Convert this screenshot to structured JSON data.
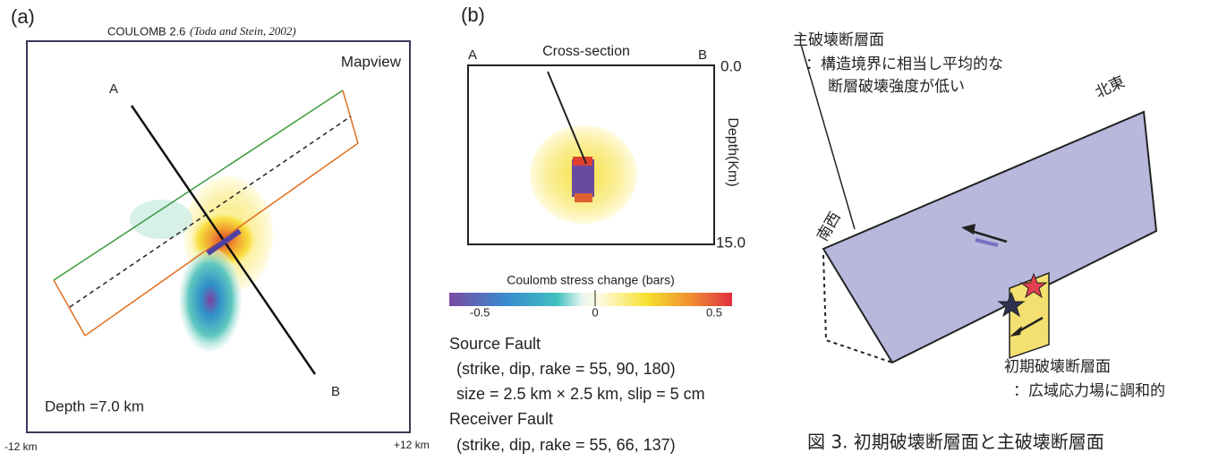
{
  "panel_a": {
    "label": "(a)",
    "program": "COULOMB 2.6",
    "citation": "(Toda and Stein, 2002)",
    "view": "Mapview",
    "point_a": "A",
    "point_b": "B",
    "depth": "Depth =7.0 km",
    "x_left": "-12 km",
    "x_right": "+12 km"
  },
  "panel_b": {
    "label": "(b)",
    "title": "Cross-section",
    "point_a": "A",
    "point_b": "B",
    "depth_top": "0.0",
    "depth_bottom": "15.0",
    "depth_axis": "Depth(Km)"
  },
  "colorbar": {
    "title": "Coulomb stress change (bars)",
    "ticks": [
      "-0.5",
      "0",
      "0.5"
    ]
  },
  "fault_text": [
    "Source Fault",
    "(strike, dip, rake = 55, 90, 180)",
    "size = 2.5 km × 2.5 km, slip = 5 cm",
    "Receiver Fault",
    "(strike, dip, rake = 55, 66, 137)"
  ],
  "panel_c": {
    "main_fault": "主破壊断層面",
    "main_note_1": "：構造境界に相当し平均的な",
    "main_note_2": "断層破壊強度が低い",
    "northeast": "北東",
    "southwest": "南西",
    "initial_fault": "初期破壊断層面",
    "initial_note": "：広域応力場に調和的",
    "caption": "図 3. 初期破壊断層面と主破壊断層面"
  }
}
